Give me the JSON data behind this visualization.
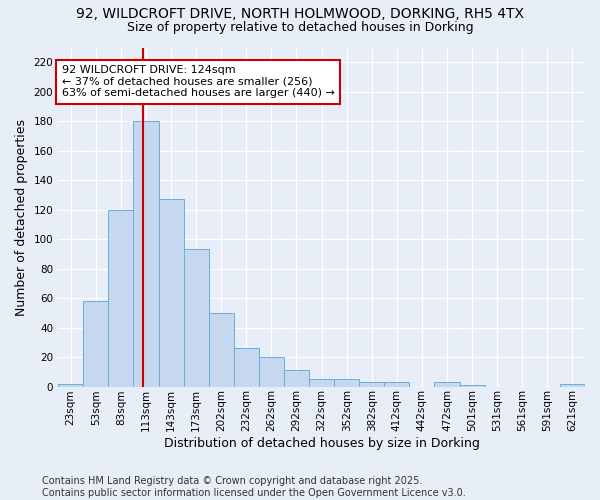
{
  "title_line1": "92, WILDCROFT DRIVE, NORTH HOLMWOOD, DORKING, RH5 4TX",
  "title_line2": "Size of property relative to detached houses in Dorking",
  "xlabel": "Distribution of detached houses by size in Dorking",
  "ylabel": "Number of detached properties",
  "bin_labels": [
    "23sqm",
    "53sqm",
    "83sqm",
    "113sqm",
    "143sqm",
    "173sqm",
    "202sqm",
    "232sqm",
    "262sqm",
    "292sqm",
    "322sqm",
    "352sqm",
    "382sqm",
    "412sqm",
    "442sqm",
    "472sqm",
    "501sqm",
    "531sqm",
    "561sqm",
    "591sqm",
    "621sqm"
  ],
  "bar_values": [
    2,
    58,
    120,
    180,
    127,
    93,
    50,
    26,
    20,
    11,
    5,
    5,
    3,
    3,
    0,
    3,
    1,
    0,
    0,
    0,
    2
  ],
  "bar_color": "#c5d8f0",
  "bar_edgecolor": "#6baed6",
  "annotation_text": "92 WILDCROFT DRIVE: 124sqm\n← 37% of detached houses are smaller (256)\n63% of semi-detached houses are larger (440) →",
  "annotation_box_color": "white",
  "annotation_box_edgecolor": "#cc0000",
  "red_line_color": "#cc0000",
  "ylim": [
    0,
    230
  ],
  "yticks": [
    0,
    20,
    40,
    60,
    80,
    100,
    120,
    140,
    160,
    180,
    200,
    220
  ],
  "footer_text": "Contains HM Land Registry data © Crown copyright and database right 2025.\nContains public sector information licensed under the Open Government Licence v3.0.",
  "background_color": "#e8eef8",
  "plot_bg_color": "#e8eef8",
  "grid_color": "white",
  "title_fontsize": 10,
  "subtitle_fontsize": 9,
  "axis_label_fontsize": 9,
  "tick_fontsize": 7.5,
  "annotation_fontsize": 8,
  "footer_fontsize": 7
}
